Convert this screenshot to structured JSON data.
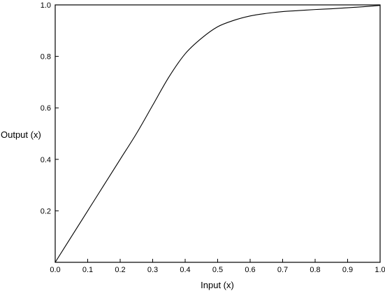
{
  "chart_data": {
    "type": "line",
    "title": "",
    "xlabel": "Input (x)",
    "ylabel": "Output (x)",
    "xlim": [
      0.0,
      1.0
    ],
    "ylim": [
      0.0,
      1.0
    ],
    "x_ticks": [
      0.0,
      0.1,
      0.2,
      0.3,
      0.4,
      0.5,
      0.6,
      0.7,
      0.8,
      0.9,
      1.0
    ],
    "x_tick_labels": [
      "0.0",
      "0.1",
      "0.2",
      "0.3",
      "0.4",
      "0.5",
      "0.6",
      "0.7",
      "0.8",
      "0.9",
      "1.0"
    ],
    "y_ticks": [
      0.0,
      0.2,
      0.4,
      0.6,
      0.8,
      1.0
    ],
    "y_tick_labels": [
      "",
      "0.2",
      "0.4",
      "0.6",
      "0.8",
      "1.0"
    ],
    "grid": false,
    "series": [
      {
        "color": "#000000",
        "x": [
          0.0,
          0.05,
          0.1,
          0.15,
          0.2,
          0.25,
          0.3,
          0.35,
          0.4,
          0.45,
          0.5,
          0.55,
          0.6,
          0.65,
          0.7,
          0.75,
          0.8,
          0.85,
          0.9,
          0.95,
          1.0
        ],
        "y": [
          0.0,
          0.1,
          0.2,
          0.3,
          0.4,
          0.5,
          0.61,
          0.72,
          0.81,
          0.87,
          0.915,
          0.94,
          0.957,
          0.967,
          0.974,
          0.978,
          0.982,
          0.985,
          0.989,
          0.993,
          0.998
        ]
      }
    ]
  }
}
